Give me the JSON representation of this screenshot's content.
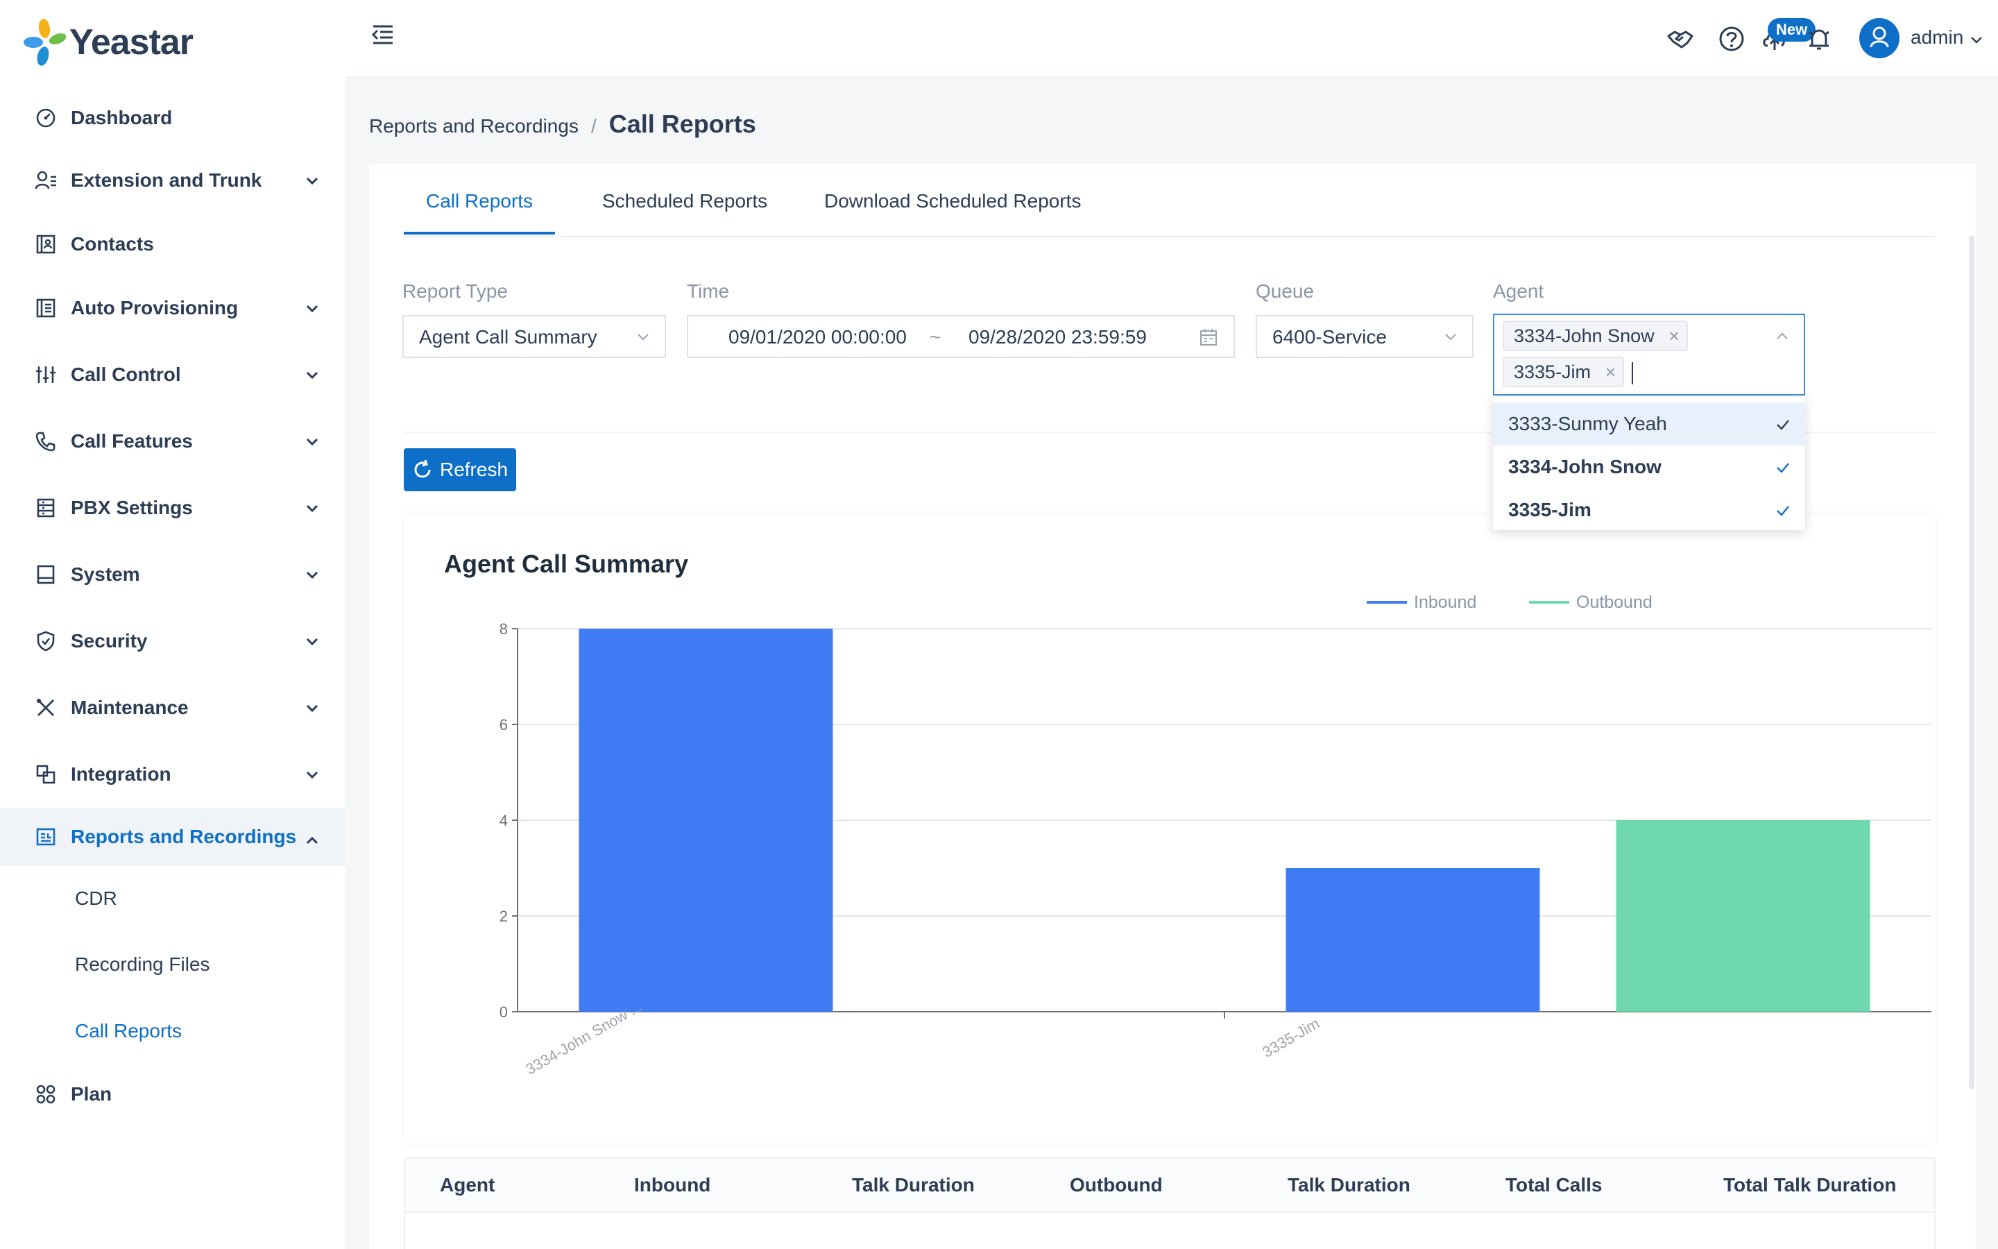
{
  "brand": {
    "name": "Yeastar"
  },
  "sidebar": {
    "items": [
      {
        "label": "Dashboard",
        "icon": "dashboard-icon"
      },
      {
        "label": "Extension and Trunk",
        "icon": "extension-icon"
      },
      {
        "label": "Contacts",
        "icon": "contacts-icon"
      },
      {
        "label": "Auto Provisioning",
        "icon": "provisioning-icon"
      },
      {
        "label": "Call Control",
        "icon": "call-control-icon"
      },
      {
        "label": "Call Features",
        "icon": "call-features-icon"
      },
      {
        "label": "PBX Settings",
        "icon": "pbx-settings-icon"
      },
      {
        "label": "System",
        "icon": "system-icon"
      },
      {
        "label": "Security",
        "icon": "security-icon"
      },
      {
        "label": "Maintenance",
        "icon": "maintenance-icon"
      },
      {
        "label": "Integration",
        "icon": "integration-icon"
      },
      {
        "label": "Reports and Recordings",
        "icon": "reports-icon"
      },
      {
        "label": "Plan",
        "icon": "plan-icon"
      }
    ],
    "sub_items": [
      "CDR",
      "Recording Files",
      "Call Reports"
    ]
  },
  "header": {
    "new_badge": "New",
    "user": "admin"
  },
  "breadcrumb": {
    "parent": "Reports and Recordings",
    "separator": "/",
    "current": "Call Reports"
  },
  "tabs": [
    "Call Reports",
    "Scheduled Reports",
    "Download Scheduled Reports"
  ],
  "filters": {
    "report_type": {
      "label": "Report Type",
      "value": "Agent Call Summary"
    },
    "time": {
      "label": "Time",
      "start": "09/01/2020 00:00:00",
      "tilde": "~",
      "end": "09/28/2020 23:59:59"
    },
    "queue": {
      "label": "Queue",
      "value": "6400-Service"
    },
    "agent": {
      "label": "Agent",
      "tags": [
        "3334-John Snow",
        "3335-Jim"
      ],
      "remove_glyph": "×"
    }
  },
  "agent_options": [
    "3333-Sunmy Yeah",
    "3334-John Snow",
    "3335-Jim"
  ],
  "refresh_label": "Refresh",
  "chart_data": {
    "type": "bar",
    "title": "Agent Call Summary",
    "categories": [
      "3334-John Snow ...",
      "3335-Jim"
    ],
    "series": [
      {
        "name": "Inbound",
        "values": [
          8,
          3
        ],
        "color": "#3f7bf2"
      },
      {
        "name": "Outbound",
        "values": [
          0,
          4
        ],
        "color": "#6fd8ae"
      }
    ],
    "ylim": [
      0,
      8
    ],
    "yticks": [
      0,
      2,
      4,
      6,
      8
    ],
    "grid": true,
    "legend": "top-center"
  },
  "table": {
    "headers": [
      "Agent",
      "Inbound",
      "Talk Duration",
      "Outbound",
      "Talk Duration",
      "Total Calls",
      "Total Talk Duration"
    ]
  },
  "colors": {
    "accent": "#0d6fc7",
    "inbound": "#3f7bf2",
    "outbound": "#6fd8ae"
  }
}
